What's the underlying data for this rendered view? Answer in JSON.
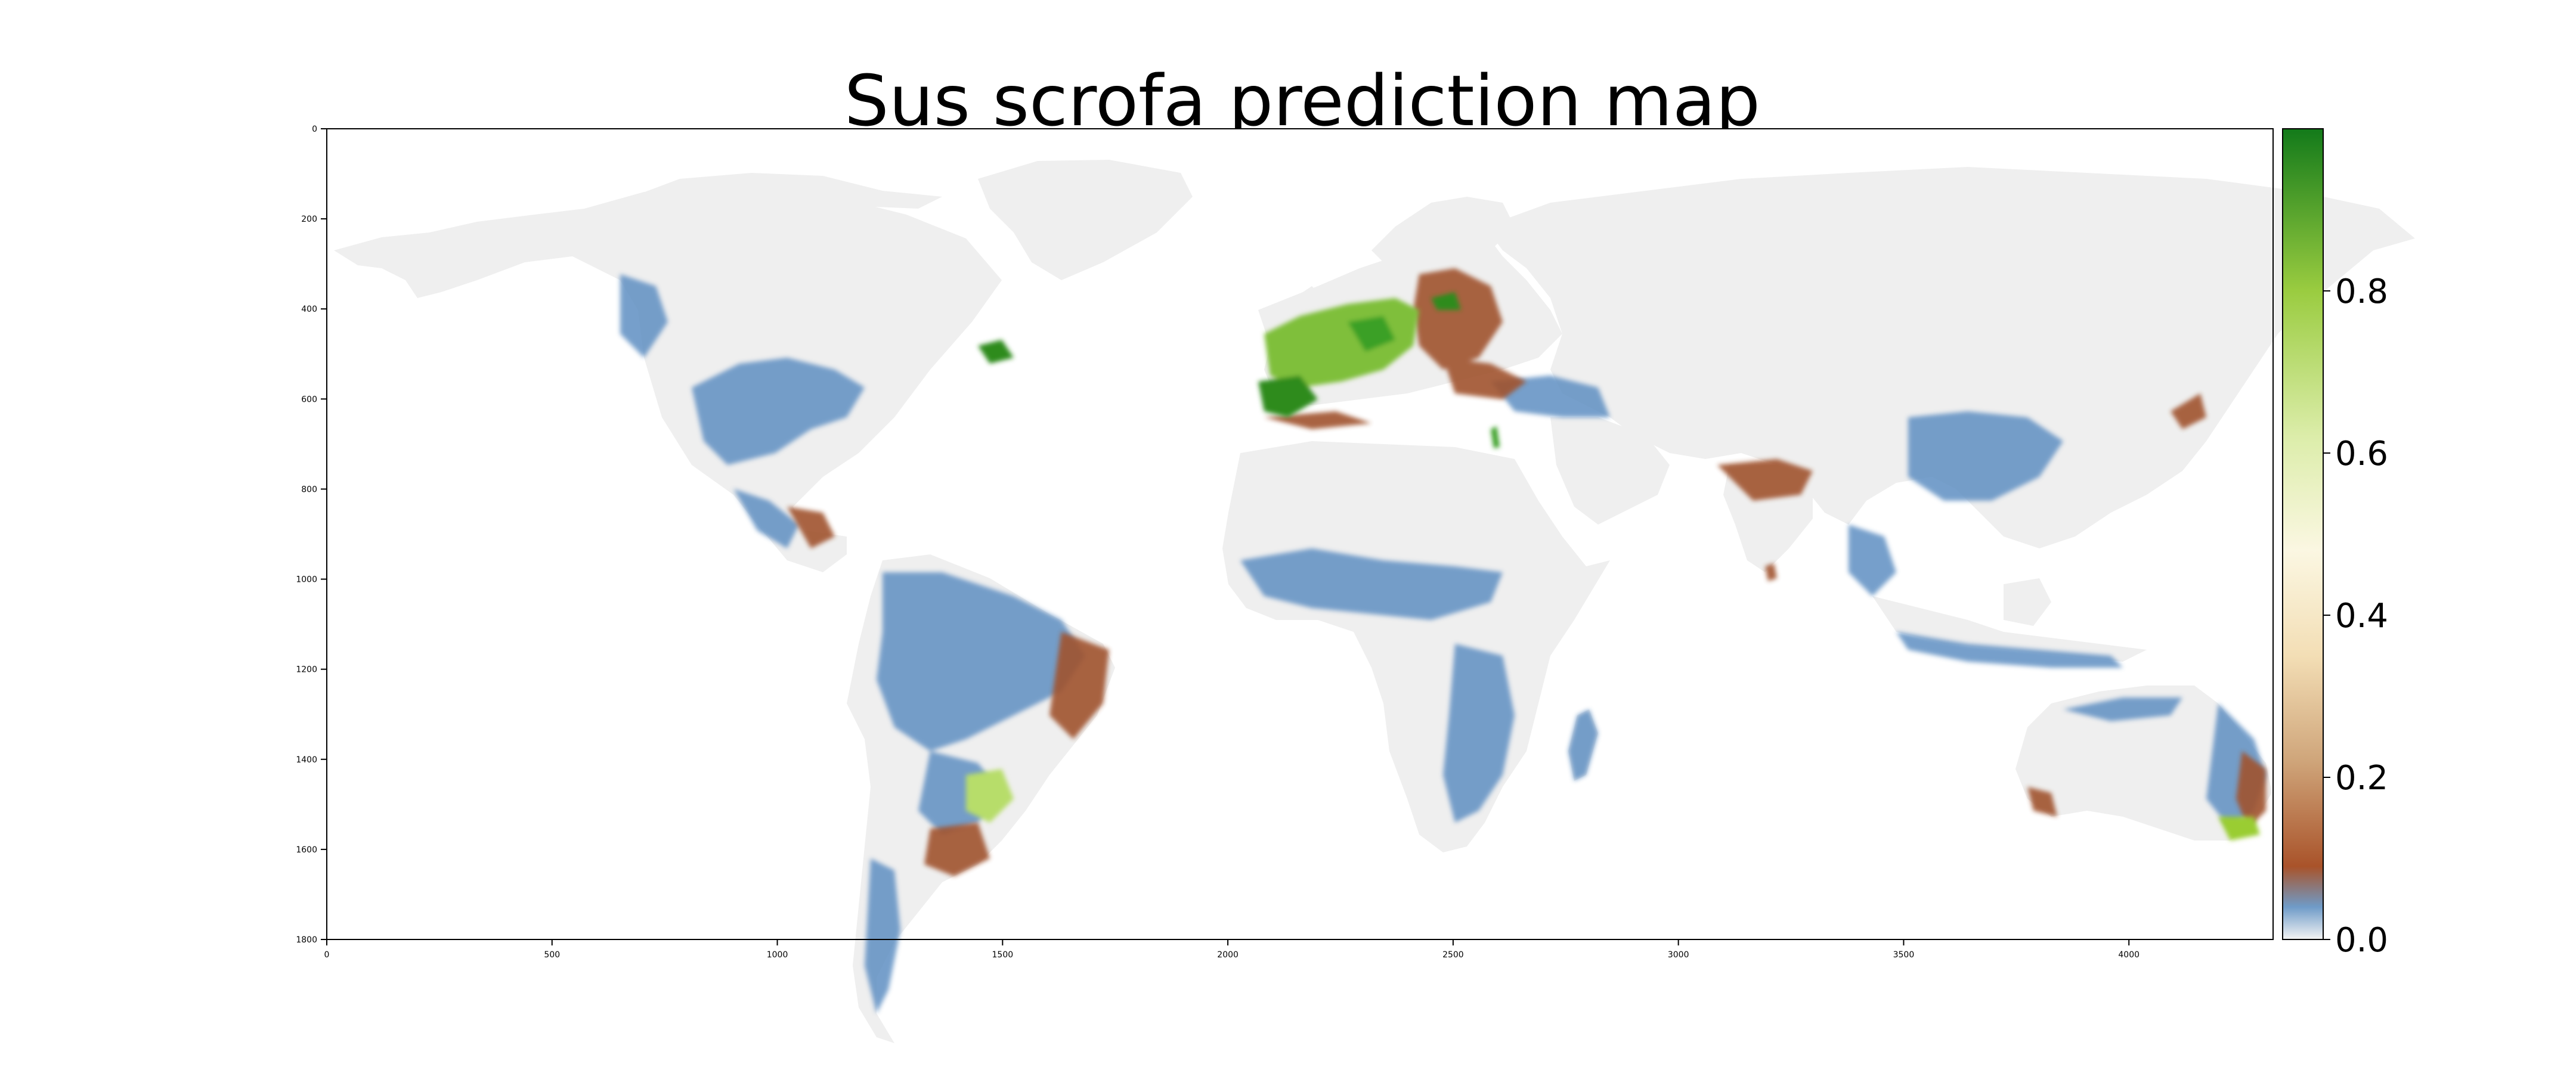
{
  "title": "Sus scrofa prediction map",
  "x_axis": {
    "ticks": [
      "0",
      "500",
      "1000",
      "1500",
      "2000",
      "2500",
      "3000",
      "3500",
      "4000"
    ],
    "values": [
      0,
      500,
      1000,
      1500,
      2000,
      2500,
      3000,
      3500,
      4000
    ],
    "range": [
      0,
      4320
    ]
  },
  "y_axis": {
    "ticks": [
      "0",
      "200",
      "400",
      "600",
      "800",
      "1000",
      "1200",
      "1400",
      "1600",
      "1800"
    ],
    "values": [
      0,
      200,
      400,
      600,
      800,
      1000,
      1200,
      1400,
      1600,
      1800
    ],
    "range": [
      0,
      1800
    ],
    "inverted": true
  },
  "colorbar": {
    "ticks": [
      "0.0",
      "0.2",
      "0.4",
      "0.6",
      "0.8"
    ],
    "values": [
      0.0,
      0.2,
      0.4,
      0.6,
      0.8
    ],
    "range": [
      0,
      1
    ],
    "colormap": "grey-blue-brown-cream-green",
    "stops": [
      {
        "v": 0.0,
        "color": "#f4f4f4"
      },
      {
        "v": 0.04,
        "color": "#6f9bc8"
      },
      {
        "v": 0.09,
        "color": "#a9532a"
      },
      {
        "v": 0.22,
        "color": "#cfa57a"
      },
      {
        "v": 0.35,
        "color": "#f3deb5"
      },
      {
        "v": 0.48,
        "color": "#fbf7e2"
      },
      {
        "v": 0.62,
        "color": "#dcedaa"
      },
      {
        "v": 0.8,
        "color": "#9acc40"
      },
      {
        "v": 1.0,
        "color": "#137a1a"
      }
    ]
  },
  "colors": {
    "land": "#efefef",
    "low": "#5f8fc2",
    "mid": "#a0522d",
    "high_light": "#9acd32",
    "high": "#2e8b1f",
    "axis": "#000000"
  }
}
